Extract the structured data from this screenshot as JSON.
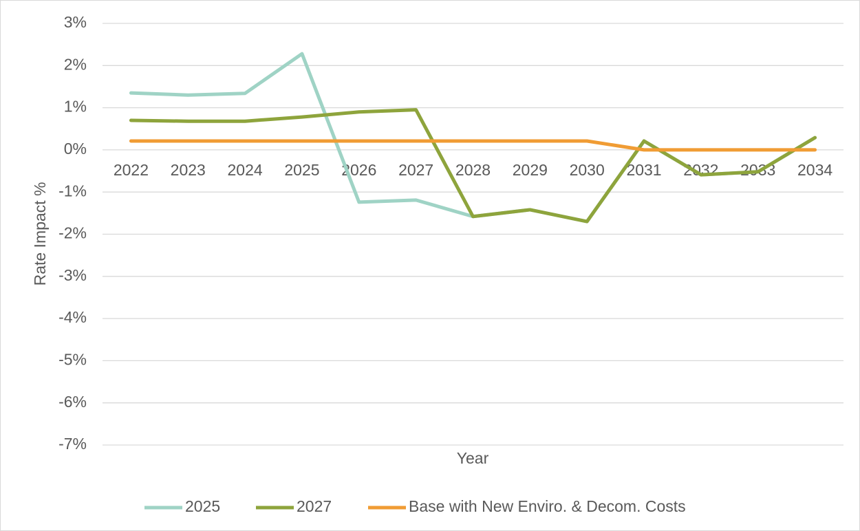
{
  "chart_data": {
    "type": "line",
    "x_label": "Year",
    "y_label": "Rate Impact %",
    "categories": [
      "2022",
      "2023",
      "2024",
      "2025",
      "2026",
      "2027",
      "2028",
      "2029",
      "2030",
      "2031",
      "2032",
      "2033",
      "2034"
    ],
    "series": [
      {
        "name": "2025",
        "color": "#9fd3c5",
        "values": [
          1.35,
          1.3,
          1.34,
          2.28,
          -1.24,
          -1.19,
          -1.58,
          -1.42,
          -1.7,
          0.21,
          -0.59,
          -0.52,
          0.29
        ]
      },
      {
        "name": "2027",
        "color": "#8ea43c",
        "values": [
          0.7,
          0.68,
          0.68,
          0.78,
          0.9,
          0.95,
          -1.58,
          -1.42,
          -1.7,
          0.21,
          -0.59,
          -0.52,
          0.29
        ]
      },
      {
        "name": "Base with New Enviro. & Decom. Costs",
        "color": "#f09c34",
        "values": [
          0.21,
          0.21,
          0.21,
          0.21,
          0.21,
          0.21,
          0.21,
          0.21,
          0.21,
          0,
          0,
          0,
          0
        ]
      }
    ],
    "ylim": [
      -7,
      3
    ],
    "yticks": [
      {
        "value": 3,
        "label": "3%"
      },
      {
        "value": 2,
        "label": "2%"
      },
      {
        "value": 1,
        "label": "1%"
      },
      {
        "value": 0,
        "label": "0%"
      },
      {
        "value": -1,
        "label": "-1%"
      },
      {
        "value": -2,
        "label": "-2%"
      },
      {
        "value": -3,
        "label": "-3%"
      },
      {
        "value": -4,
        "label": "-4%"
      },
      {
        "value": -5,
        "label": "-5%"
      },
      {
        "value": -6,
        "label": "-6%"
      },
      {
        "value": -7,
        "label": "-7%"
      }
    ],
    "grid": true,
    "legend": "bottom"
  }
}
